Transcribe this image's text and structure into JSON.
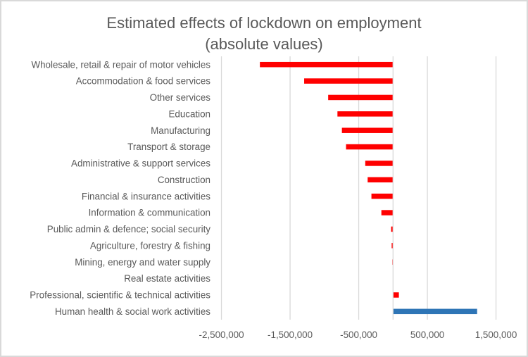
{
  "chart_data": {
    "type": "bar",
    "orientation": "horizontal",
    "title": [
      "Estimated effects of lockdown on employment",
      "(absolute values)"
    ],
    "xlabel": "",
    "ylabel": "",
    "categories": [
      "Wholesale, retail & repair of motor vehicles",
      "Accommodation & food services",
      "Other services",
      "Education",
      "Manufacturing",
      "Transport & storage",
      "Administrative & support services",
      "Construction",
      "Financial & insurance activities",
      "Information & communication",
      "Public admin & defence; social security",
      "Agriculture, forestry & fishing",
      "Mining, energy and water supply",
      "Real estate activities",
      "Professional, scientific & technical activities",
      "Human health & social work activities"
    ],
    "values": [
      -1940000,
      -1295000,
      -945000,
      -810000,
      -745000,
      -685000,
      -405000,
      -370000,
      -315000,
      -170000,
      -28000,
      -20000,
      -10000,
      0,
      85000,
      1225000
    ],
    "bar_colors": [
      "#ff0000",
      "#ff0000",
      "#ff0000",
      "#ff0000",
      "#ff0000",
      "#ff0000",
      "#ff0000",
      "#ff0000",
      "#ff0000",
      "#ff0000",
      "#ff0000",
      "#ff0000",
      "#ff0000",
      "#ff0000",
      "#ff0000",
      "#2e75b6"
    ],
    "xlim": [
      -2500000,
      1900000
    ],
    "xticks": [
      -2500000,
      -1500000,
      -500000,
      500000,
      1500000
    ],
    "xtick_labels": [
      "-2,500,000",
      "-1,500,000",
      "-500,000",
      "500,000",
      "1,500,000"
    ],
    "grid": "vertical",
    "legend": "none"
  }
}
